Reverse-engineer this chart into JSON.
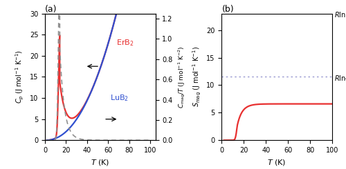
{
  "panel_a": {
    "title": "(a)",
    "xlabel": "T (K)",
    "ylabel_left": "C_p (J mol^-1 K^-1)",
    "ylabel_right": "C_mag/T (J mol^-1 K^-2)",
    "xlim": [
      0,
      105
    ],
    "ylim_left": [
      0,
      30
    ],
    "ylim_right": [
      0,
      1.25
    ],
    "xticks": [
      0,
      20,
      40,
      60,
      80,
      100
    ],
    "yticks_left": [
      0,
      5,
      10,
      15,
      20,
      25,
      30
    ],
    "yticks_right": [
      0.0,
      0.2,
      0.4,
      0.6,
      0.8,
      1.0,
      1.2
    ],
    "color_ErB2": "#e83030",
    "color_LuB2": "#3050d0",
    "color_dashed": "#909090"
  },
  "panel_b": {
    "title": "(b)",
    "xlabel": "T (K)",
    "ylabel": "S_mag (J mol^-1 K^-1)",
    "xlim": [
      0,
      100
    ],
    "ylim": [
      0,
      23
    ],
    "xticks": [
      0,
      20,
      40,
      60,
      80,
      100
    ],
    "yticks": [
      0,
      5,
      10,
      15,
      20
    ],
    "Rln16_value": 23.05,
    "Rln4_value": 11.53,
    "color_line": "#e83030",
    "color_hline": "#9090cc"
  }
}
